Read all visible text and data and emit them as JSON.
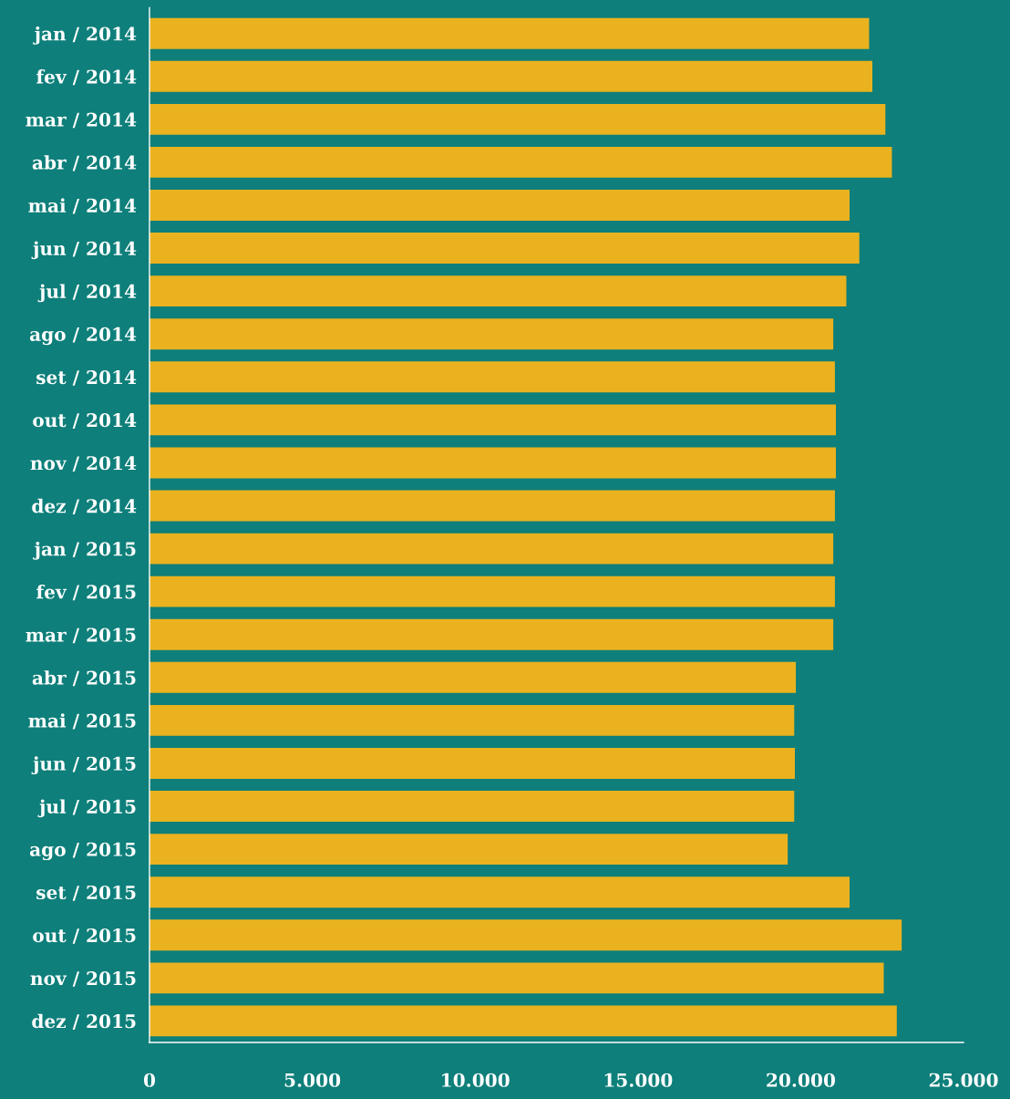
{
  "chart_data": {
    "type": "bar",
    "orientation": "horizontal",
    "categories": [
      "jan / 2014",
      "fev / 2014",
      "mar / 2014",
      "abr / 2014",
      "mai / 2014",
      "jun / 2014",
      "jul / 2014",
      "ago / 2014",
      "set / 2014",
      "out / 2014",
      "nov / 2014",
      "dez / 2014",
      "jan / 2015",
      "fev / 2015",
      "mar / 2015",
      "abr / 2015",
      "mai / 2015",
      "jun / 2015",
      "jul / 2015",
      "ago / 2015",
      "set / 2015",
      "out / 2015",
      "nov / 2015",
      "dez / 2015"
    ],
    "values": [
      22100,
      22200,
      22600,
      22800,
      21500,
      21800,
      21400,
      21000,
      21050,
      21080,
      21080,
      21050,
      21000,
      21050,
      21000,
      19850,
      19800,
      19820,
      19800,
      19600,
      21500,
      23100,
      22550,
      22950
    ],
    "color": "#eab21f",
    "xlim": [
      0,
      25000
    ],
    "xticks": [
      0,
      {
        "value": 5000,
        "label": "5.000"
      },
      {
        "value": 10000,
        "label": "10.000"
      },
      {
        "value": 15000,
        "label": "15.000"
      },
      {
        "value": 20000,
        "label": "20.000"
      },
      {
        "value": 25000,
        "label": "25.000"
      }
    ],
    "grid": false,
    "legend": false
  }
}
